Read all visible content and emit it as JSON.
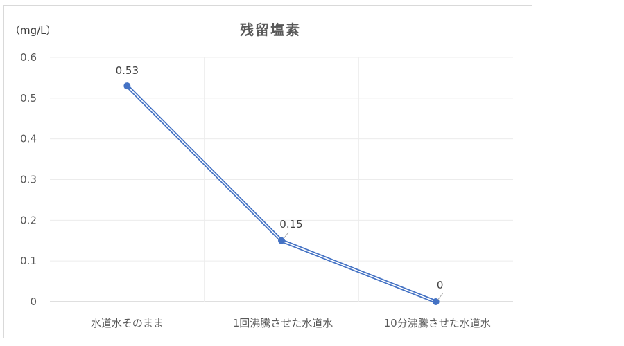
{
  "chart_data": {
    "type": "line",
    "title": "残留塩素",
    "unit_label": "（mg/L）",
    "categories": [
      "水道水そのまま",
      "1回沸騰させた水道水",
      "10分沸騰させた水道水"
    ],
    "values": [
      0.53,
      0.15,
      0
    ],
    "data_labels": [
      "0.53",
      "0.15",
      "0"
    ],
    "ylim": [
      0,
      0.6
    ],
    "yticks": [
      "0",
      "0.1",
      "0.2",
      "0.3",
      "0.4",
      "0.5",
      "0.6"
    ],
    "grid": true,
    "legend": "none",
    "line_color": "#4472c4"
  }
}
